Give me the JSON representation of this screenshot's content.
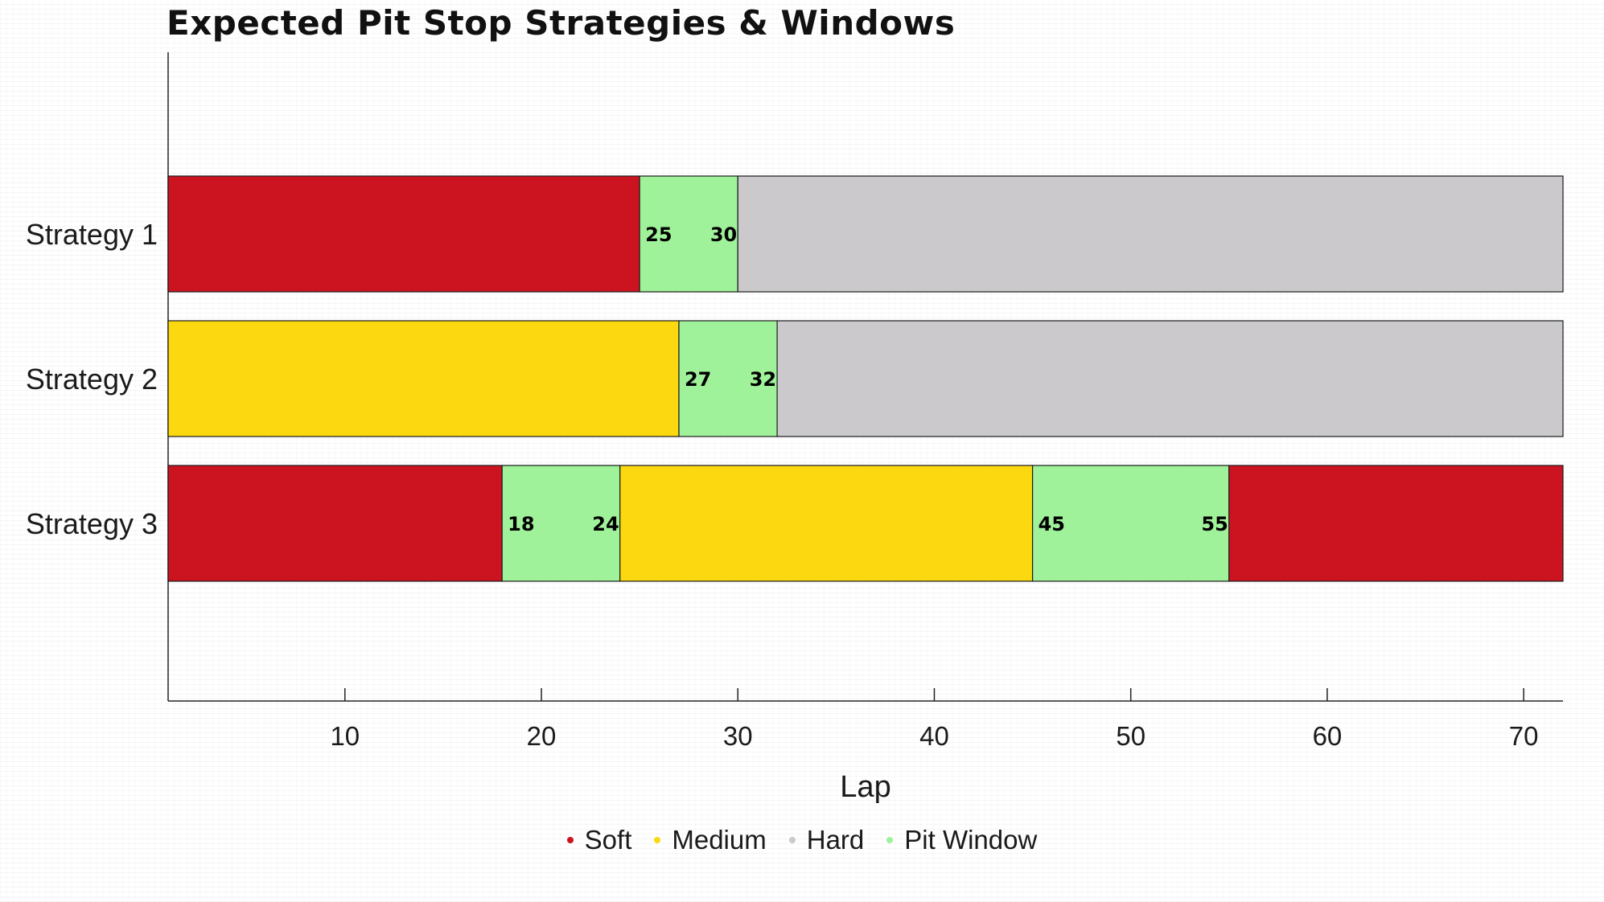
{
  "chart_data": {
    "type": "bar",
    "orientation": "horizontal",
    "stacked": true,
    "title": "Expected Pit Stop Strategies & Windows",
    "xlabel": "Lap",
    "ylabel": "",
    "xlim": [
      1,
      72
    ],
    "xticks": [
      10,
      20,
      30,
      40,
      50,
      60,
      70
    ],
    "grid": false,
    "legend_position": "bottom",
    "legend": [
      {
        "name": "Soft",
        "color": "#cc1421"
      },
      {
        "name": "Medium",
        "color": "#fbd810"
      },
      {
        "name": "Hard",
        "color": "#cbc9cc"
      },
      {
        "name": "Pit Window",
        "color": "#a0f29a"
      }
    ],
    "categories": [
      "Strategy 1",
      "Strategy 2",
      "Strategy 3"
    ],
    "strategies": [
      {
        "name": "Strategy 1",
        "segments": [
          {
            "compound": "Soft",
            "start": 1,
            "end": 25
          },
          {
            "compound": "Pit Window",
            "start": 25,
            "end": 30,
            "labels": [
              "25",
              "30"
            ]
          },
          {
            "compound": "Hard",
            "start": 30,
            "end": 72
          }
        ]
      },
      {
        "name": "Strategy 2",
        "segments": [
          {
            "compound": "Medium",
            "start": 1,
            "end": 27
          },
          {
            "compound": "Pit Window",
            "start": 27,
            "end": 32,
            "labels": [
              "27",
              "32"
            ]
          },
          {
            "compound": "Hard",
            "start": 32,
            "end": 72
          }
        ]
      },
      {
        "name": "Strategy 3",
        "segments": [
          {
            "compound": "Soft",
            "start": 1,
            "end": 18
          },
          {
            "compound": "Pit Window",
            "start": 18,
            "end": 24,
            "labels": [
              "18",
              "24"
            ]
          },
          {
            "compound": "Medium",
            "start": 24,
            "end": 45
          },
          {
            "compound": "Pit Window",
            "start": 45,
            "end": 55,
            "labels": [
              "45",
              "55"
            ]
          },
          {
            "compound": "Soft",
            "start": 55,
            "end": 72
          }
        ]
      }
    ]
  }
}
